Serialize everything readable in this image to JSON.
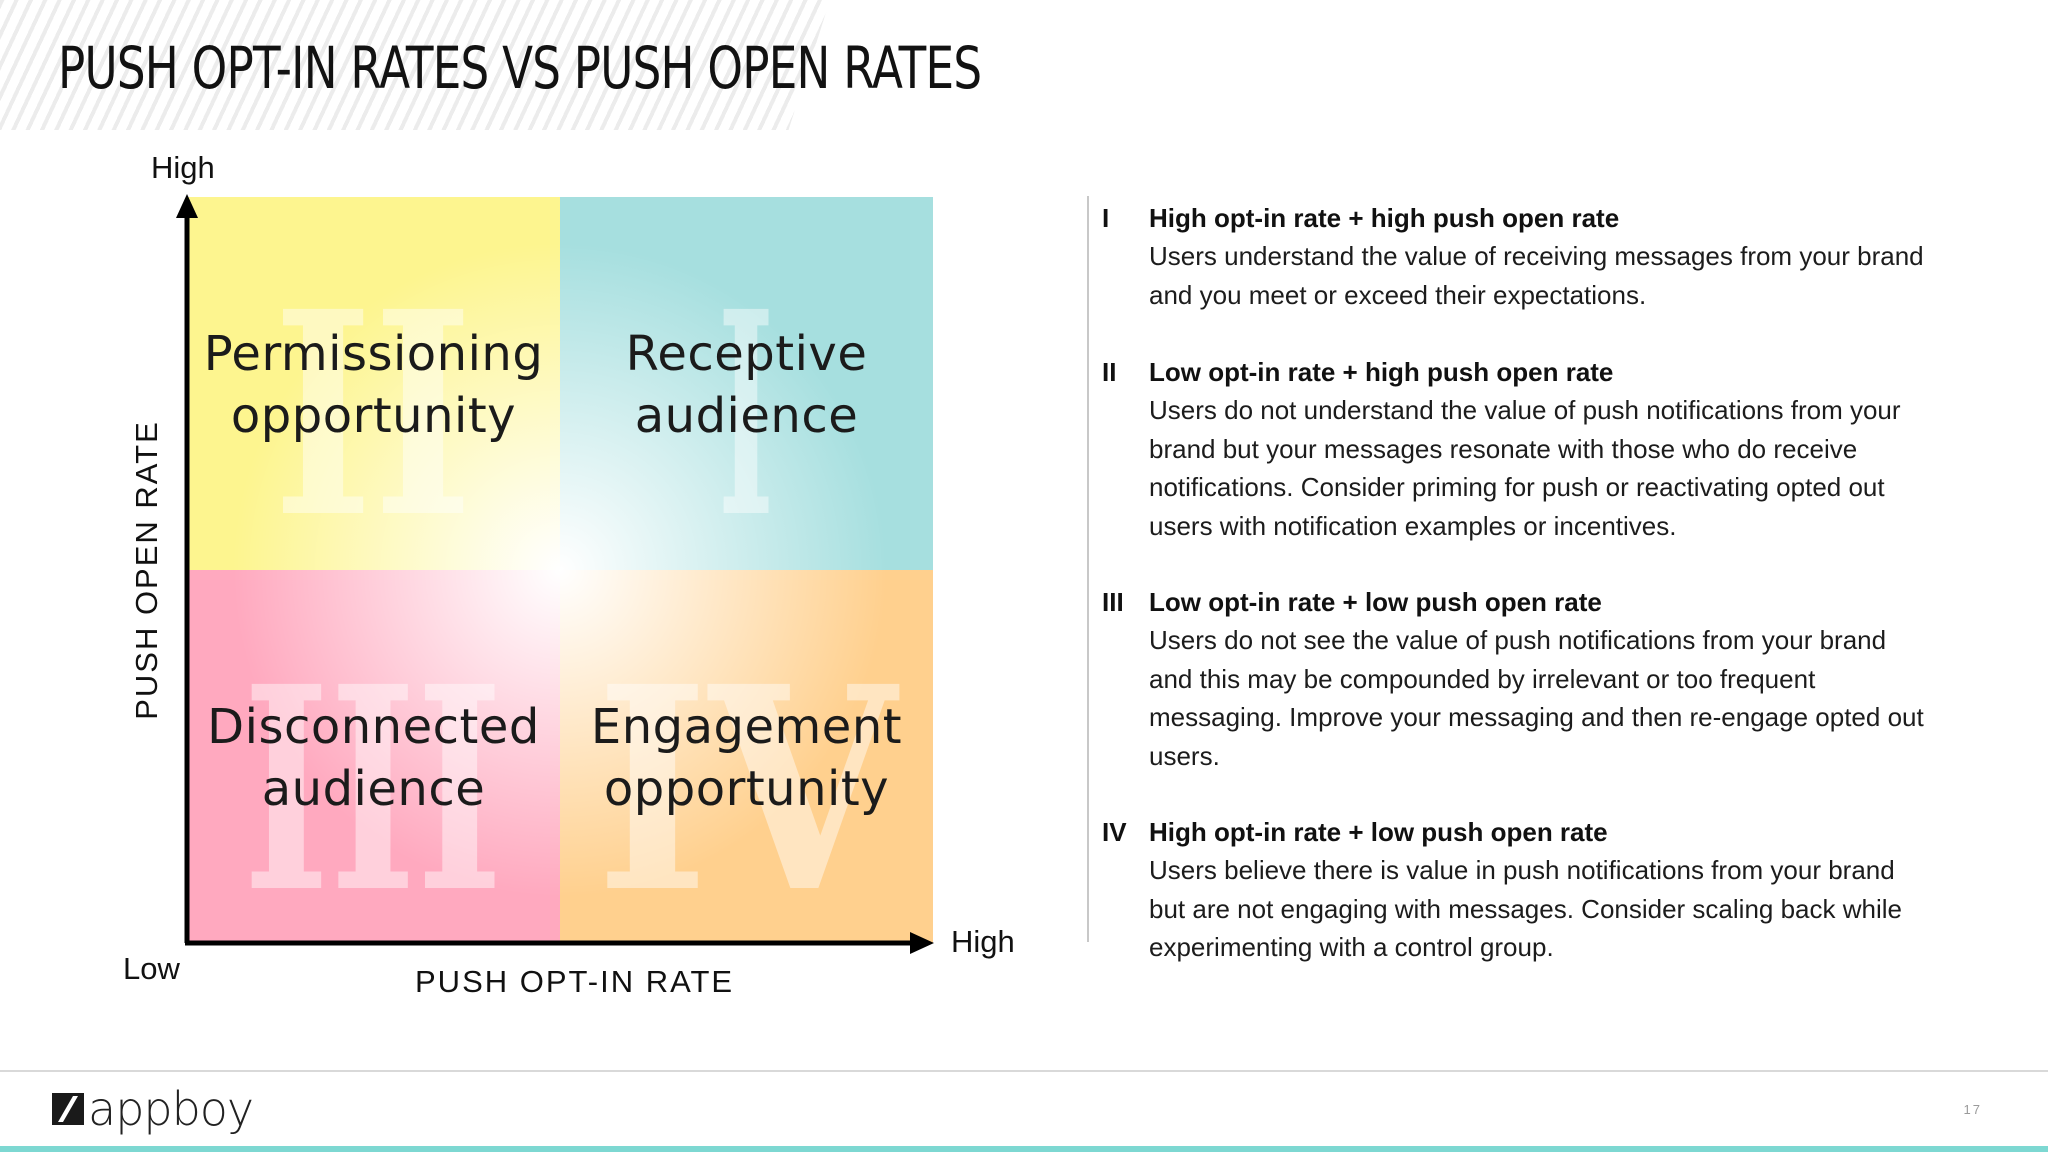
{
  "slide": {
    "title": "PUSH OPT-IN RATES VS PUSH OPEN RATES",
    "page_number": "17"
  },
  "diagram": {
    "y_axis": {
      "title": "PUSH OPEN RATE",
      "high_label": "High"
    },
    "x_axis": {
      "title": "PUSH OPT-IN RATE",
      "high_label": "High"
    },
    "origin_label": "Low",
    "quadrants": {
      "top_left": {
        "numeral": "II",
        "line1": "Permissioning",
        "line2": "opportunity",
        "color": "#fdf58f"
      },
      "top_right": {
        "numeral": "I",
        "line1": "Receptive",
        "line2": "audience",
        "color": "#a6dfdf"
      },
      "bottom_left": {
        "numeral": "III",
        "line1": "Disconnected",
        "line2": "audience",
        "color": "#ffa9bf"
      },
      "bottom_right": {
        "numeral": "IV",
        "line1": "Engagement",
        "line2": "opportunity",
        "color": "#ffd08e"
      }
    }
  },
  "descriptions": [
    {
      "numeral": "I",
      "heading": "High opt-in rate + high push open rate",
      "lines": [
        "Users understand the value of receiving messages from your brand",
        "and you meet or exceed their expectations."
      ]
    },
    {
      "numeral": "II",
      "heading": "Low opt-in rate + high push open rate",
      "lines": [
        "Users do not understand the value of push notifications from your",
        "brand but your messages resonate with those who do receive",
        "notifications. Consider priming for push or reactivating opted out",
        "users with notification examples or incentives."
      ]
    },
    {
      "numeral": "III",
      "heading": "Low opt-in rate + low push open rate",
      "lines": [
        "Users do not see the value of push notifications from your brand",
        "and this may be compounded by irrelevant or too frequent",
        "messaging. Improve your messaging and then re-engage opted out",
        "users."
      ]
    },
    {
      "numeral": "IV",
      "heading": "High opt-in rate + low push open rate",
      "lines": [
        "Users believe there is value in push notifications from your brand",
        "but are not engaging with messages. Consider scaling back while",
        "experimenting with a control group."
      ]
    }
  ],
  "footer": {
    "logo_text": "appboy",
    "accent_color": "#7dd8d2"
  }
}
